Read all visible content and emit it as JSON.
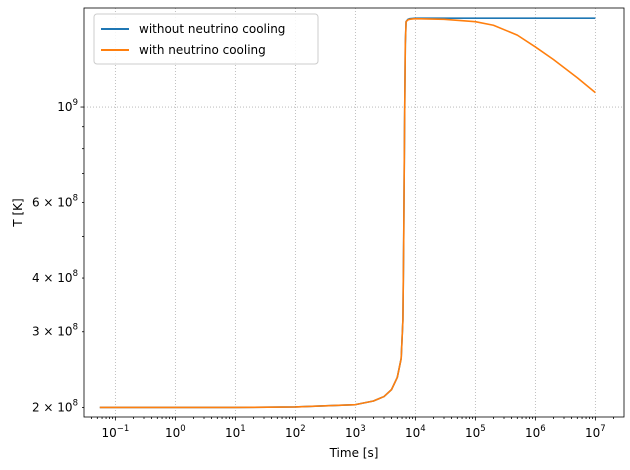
{
  "chart_data": {
    "type": "line",
    "xlabel": "Time [s]",
    "ylabel": "T [K]",
    "xscale": "log",
    "yscale": "log",
    "xlim": [
      0.03,
      30000000
    ],
    "ylim": [
      190000000,
      1700000000
    ],
    "grid": true,
    "legend_position": "top-left",
    "x_ticks": [
      {
        "value": 0.1,
        "base": "10",
        "exp": "−1"
      },
      {
        "value": 1,
        "base": "10",
        "exp": "0"
      },
      {
        "value": 10,
        "base": "10",
        "exp": "1"
      },
      {
        "value": 100,
        "base": "10",
        "exp": "2"
      },
      {
        "value": 1000,
        "base": "10",
        "exp": "3"
      },
      {
        "value": 10000,
        "base": "10",
        "exp": "4"
      },
      {
        "value": 100000,
        "base": "10",
        "exp": "5"
      },
      {
        "value": 1000000,
        "base": "10",
        "exp": "6"
      },
      {
        "value": 10000000,
        "base": "10",
        "exp": "7"
      }
    ],
    "y_ticks": [
      {
        "value": 200000000,
        "mant": "2 × ",
        "base": "10",
        "exp": "8"
      },
      {
        "value": 300000000,
        "mant": "3 × ",
        "base": "10",
        "exp": "8"
      },
      {
        "value": 400000000,
        "mant": "4 × ",
        "base": "10",
        "exp": "8"
      },
      {
        "value": 600000000,
        "mant": "6 × ",
        "base": "10",
        "exp": "8"
      },
      {
        "value": 1000000000,
        "mant": "",
        "base": "10",
        "exp": "9"
      }
    ],
    "series": [
      {
        "name": "without neutrino cooling",
        "color": "#1f77b4",
        "x": [
          0.055,
          1,
          10,
          100,
          1000,
          2000,
          3000,
          4000,
          5000,
          5800,
          6200,
          6400,
          6600,
          6800,
          7000,
          7500,
          8000,
          9000,
          10000,
          100000,
          1000000,
          10000000
        ],
        "y": [
          200000000,
          200000000,
          200000000,
          200500000,
          203000000,
          207000000,
          212000000,
          220000000,
          235000000,
          260000000,
          320000000,
          500000000,
          900000000,
          1400000000,
          1580000000,
          1600000000,
          1605000000,
          1608000000,
          1610000000,
          1610000000,
          1610000000,
          1610000000
        ]
      },
      {
        "name": "with neutrino cooling",
        "color": "#ff7f0e",
        "x": [
          0.055,
          1,
          10,
          100,
          1000,
          2000,
          3000,
          4000,
          5000,
          5800,
          6200,
          6400,
          6600,
          6800,
          7000,
          7500,
          8000,
          9000,
          10000,
          30000,
          100000,
          200000,
          500000,
          1000000,
          2000000,
          5000000,
          10000000
        ],
        "y": [
          200000000,
          200000000,
          200000000,
          200500000,
          203000000,
          207000000,
          212000000,
          220000000,
          235000000,
          260000000,
          320000000,
          500000000,
          900000000,
          1400000000,
          1580000000,
          1595000000,
          1600000000,
          1603000000,
          1605000000,
          1600000000,
          1580000000,
          1550000000,
          1470000000,
          1380000000,
          1290000000,
          1170000000,
          1080000000
        ]
      }
    ]
  }
}
